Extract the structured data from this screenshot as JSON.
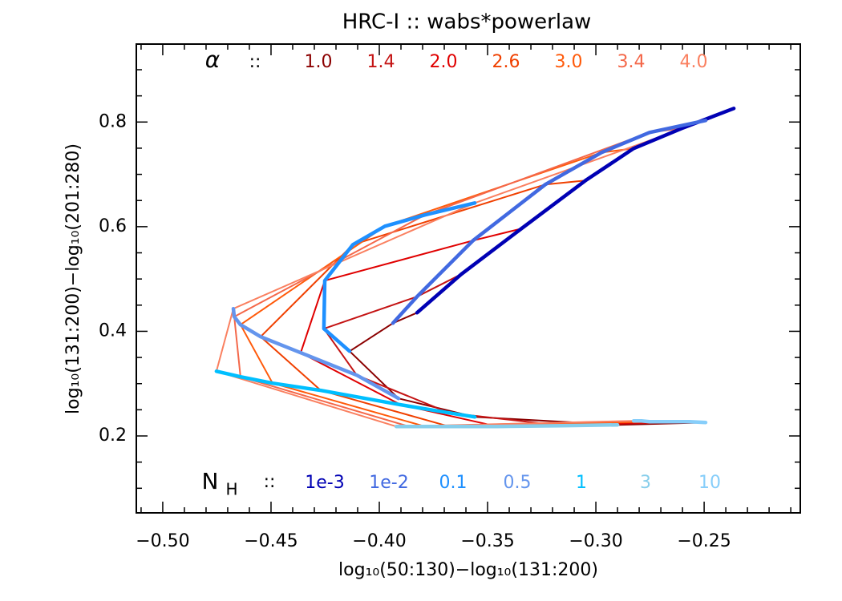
{
  "chart_data": {
    "type": "line",
    "title": "HRC-I :: wabs*powerlaw",
    "xlabel": "log₁₀(50:130)−log₁₀(131:200)",
    "ylabel": "log₁₀(131:200)−log₁₀(201:280)",
    "xlim": [
      -0.5122,
      -0.2056
    ],
    "ylim": [
      0.053,
      0.949
    ],
    "xticks": [
      {
        "value": -0.5,
        "label": "−0.50"
      },
      {
        "value": -0.45,
        "label": "−0.45"
      },
      {
        "value": -0.4,
        "label": "−0.40"
      },
      {
        "value": -0.35,
        "label": "−0.35"
      },
      {
        "value": -0.3,
        "label": "−0.30"
      },
      {
        "value": -0.25,
        "label": "−0.25"
      }
    ],
    "yticks": [
      0.2,
      0.4,
      0.6,
      0.8
    ],
    "alpha_label": "α",
    "alpha_sep": "::",
    "nh_label": "N",
    "nh_label_sub": "H",
    "nh_sep": "::",
    "series": [
      {
        "name": "1.0",
        "color": "#8b0000",
        "x": [
          -0.3826,
          -0.3937,
          -0.4137,
          -0.3911,
          -0.3559,
          -0.29,
          -0.2493
        ],
        "values": [
          0.4355,
          0.4156,
          0.362,
          0.2717,
          0.2364,
          0.2211,
          0.2257
        ]
      },
      {
        "name": "1.4",
        "color": "#c41414",
        "x": [
          -0.3622,
          -0.3826,
          -0.4256,
          -0.4104,
          -0.3678,
          -0.3159,
          -0.2567
        ],
        "values": [
          0.509,
          0.4662,
          0.4049,
          0.3161,
          0.2441,
          0.2196,
          0.2273
        ]
      },
      {
        "name": "2.0",
        "color": "#e00000",
        "x": [
          -0.3344,
          -0.3567,
          -0.4252,
          -0.4363,
          -0.39,
          -0.3456,
          -0.2641
        ],
        "values": [
          0.5963,
          0.5734,
          0.4968,
          0.359,
          0.2594,
          0.2181,
          0.2273
        ]
      },
      {
        "name": "2.6",
        "color": "#f04000",
        "x": [
          -0.3048,
          -0.3233,
          -0.4122,
          -0.4548,
          -0.427,
          -0.3678,
          -0.2715
        ],
        "values": [
          0.6882,
          0.6806,
          0.5657,
          0.3896,
          0.287,
          0.2181,
          0.2273
        ]
      },
      {
        "name": "3.0",
        "color": "#ff5a0a",
        "x": [
          -0.2826,
          -0.2974,
          -0.3974,
          -0.4641,
          -0.4493,
          -0.3789,
          -0.2752
        ],
        "values": [
          0.7495,
          0.7418,
          0.6009,
          0.4126,
          0.3008,
          0.2181,
          0.2273
        ]
      },
      {
        "name": "3.4",
        "color": "#f4684a",
        "x": [
          -0.2604,
          -0.2752,
          -0.3789,
          -0.467,
          -0.4641,
          -0.3863,
          -0.2789
        ],
        "values": [
          0.7877,
          0.7801,
          0.6224,
          0.4279,
          0.313,
          0.2181,
          0.2288
        ]
      },
      {
        "name": "4.0",
        "color": "#fa8060",
        "x": [
          -0.2363,
          -0.2493,
          -0.3559,
          -0.4674,
          -0.4752,
          -0.3922,
          -0.2826
        ],
        "values": [
          0.826,
          0.8031,
          0.6453,
          0.4432,
          0.3237,
          0.2181,
          0.2288
        ]
      }
    ],
    "nh_series": [
      {
        "name": "1e-3",
        "color": "#0000b4"
      },
      {
        "name": "1e-2",
        "color": "#4169e1"
      },
      {
        "name": "0.1",
        "color": "#1e90ff"
      },
      {
        "name": "0.5",
        "color": "#6495ed"
      },
      {
        "name": "1",
        "color": "#00bfff"
      },
      {
        "name": "3",
        "color": "#87ceeb"
      },
      {
        "name": "10",
        "color": "#87cefa"
      }
    ]
  }
}
